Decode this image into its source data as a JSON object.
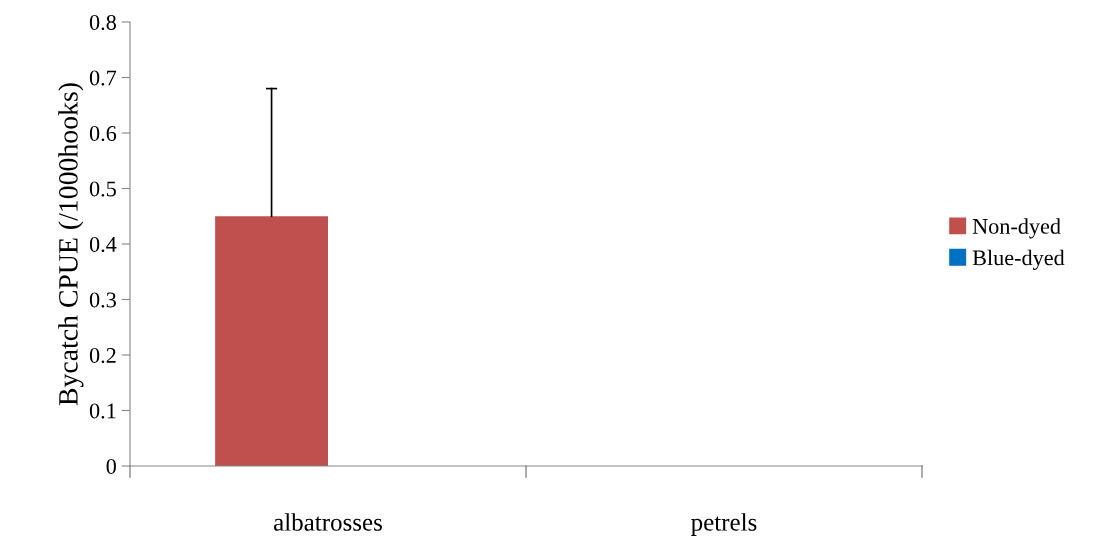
{
  "chart_data": {
    "type": "bar",
    "ylabel": "Bycatch CPUE (/1000hooks)",
    "categories": [
      "albatrosses",
      "petrels"
    ],
    "series": [
      {
        "name": "Non-dyed",
        "color": "#c0504d",
        "values": [
          0.45,
          0
        ],
        "errors": [
          [
            0.45,
            0.68
          ],
          null
        ]
      },
      {
        "name": "Blue-dyed",
        "color": "#0070c0",
        "values": [
          0,
          0
        ]
      }
    ],
    "ylim": [
      0,
      0.8
    ],
    "yticks": [
      0,
      0.1,
      0.2,
      0.3,
      0.4,
      0.5,
      0.6,
      0.7,
      0.8
    ],
    "grid": false,
    "legend": "right"
  }
}
